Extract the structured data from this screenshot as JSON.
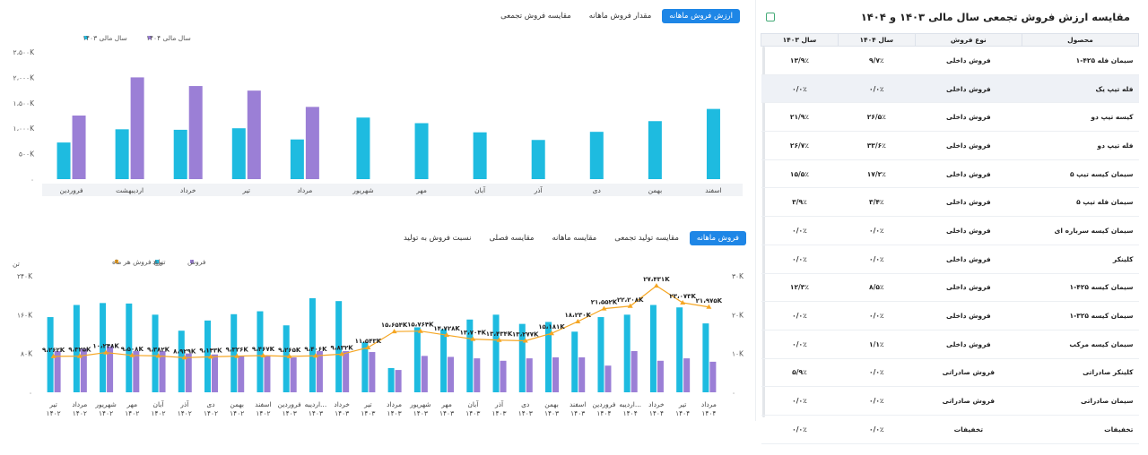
{
  "top_tabs": [
    {
      "label": "ارزش فروش ماهانه",
      "active": true
    },
    {
      "label": "مقدار فروش ماهانه",
      "active": false
    },
    {
      "label": "مقایسه فروش تجمعی",
      "active": false
    }
  ],
  "bottom_tabs": [
    {
      "label": "فروش ماهانه",
      "active": true
    },
    {
      "label": "مقایسه تولید تجمعی",
      "active": false
    },
    {
      "label": "مقایسه ماهانه",
      "active": false
    },
    {
      "label": "مقایسه فصلی",
      "active": false
    },
    {
      "label": "نسبت فروش به تولید",
      "active": false
    }
  ],
  "colors": {
    "cyan": "#1ebbe0",
    "purple": "#9b7fd6",
    "orange": "#f5a623",
    "axis": "#888888"
  },
  "chart_data": [
    {
      "type": "bar",
      "legend": [
        "سال مالی ۱۴۰۳",
        "سال مالی ۱۴۰۴"
      ],
      "legend_position": "top-left",
      "categories": [
        "فروردین",
        "اردیبهشت",
        "خرداد",
        "تیر",
        "مرداد",
        "شهریور",
        "مهر",
        "آبان",
        "آذر",
        "دی",
        "بهمن",
        "اسفند"
      ],
      "series": [
        {
          "name": "سال مالی ۱۴۰۳",
          "color": "#1ebbe0",
          "values": [
            720,
            980,
            970,
            1000,
            780,
            1210,
            1100,
            920,
            770,
            930,
            1140,
            1380
          ]
        },
        {
          "name": "سال مالی ۱۴۰۴",
          "color": "#9b7fd6",
          "values": [
            1250,
            2000,
            1830,
            1740,
            1420,
            null,
            null,
            null,
            null,
            null,
            null,
            null
          ]
        }
      ],
      "yticks": [
        "۰",
        "۵۰۰K",
        "۱،۰۰۰K",
        "۱،۵۰۰K",
        "۲،۰۰۰K",
        "۲،۵۰۰K"
      ],
      "ylim": [
        0,
        2500
      ]
    },
    {
      "type": "bar",
      "legend": [
        "فروش",
        "تولید",
        "نرخ فروش هر ماه"
      ],
      "legend_position": "top-left",
      "left_unit": "تن",
      "categories": [
        [
          "تیر",
          "۱۴۰۲"
        ],
        [
          "مرداد",
          "۱۴۰۲"
        ],
        [
          "شهریور",
          "۱۴۰۲"
        ],
        [
          "مهر",
          "۱۴۰۲"
        ],
        [
          "آبان",
          "۱۴۰۲"
        ],
        [
          "آذر",
          "۱۴۰۲"
        ],
        [
          "دی",
          "۱۴۰۲"
        ],
        [
          "بهمن",
          "۱۴۰۲"
        ],
        [
          "اسفند",
          "۱۴۰۲"
        ],
        [
          "فروردین",
          "۱۴۰۳"
        ],
        [
          "اردیبه...",
          "۱۴۰۳"
        ],
        [
          "خرداد",
          "۱۴۰۳"
        ],
        [
          "تیر",
          "۱۴۰۳"
        ],
        [
          "مرداد",
          "۱۴۰۳"
        ],
        [
          "شهریور",
          "۱۴۰۳"
        ],
        [
          "مهر",
          "۱۴۰۳"
        ],
        [
          "آبان",
          "۱۴۰۳"
        ],
        [
          "آذر",
          "۱۴۰۳"
        ],
        [
          "دی",
          "۱۴۰۳"
        ],
        [
          "بهمن",
          "۱۴۰۳"
        ],
        [
          "اسفند",
          "۱۴۰۳"
        ],
        [
          "فروردین",
          "۱۴۰۴"
        ],
        [
          "اردیبه...",
          "۱۴۰۴"
        ],
        [
          "خرداد",
          "۱۴۰۴"
        ],
        [
          "تیر",
          "۱۴۰۴"
        ],
        [
          "مرداد",
          "۱۴۰۴"
        ]
      ],
      "series": [
        {
          "name": "تولید",
          "color": "#1ebbe0",
          "axis": "left",
          "values": [
            155,
            180,
            184,
            183,
            160,
            127,
            148,
            161,
            167,
            138,
            194,
            188,
            103,
            50,
            134,
            130,
            150,
            160,
            141,
            145,
            125,
            155,
            160,
            180,
            175,
            142
          ]
        },
        {
          "name": "فروش",
          "color": "#9b7fd6",
          "axis": "left",
          "values": [
            85,
            90,
            95,
            85,
            85,
            80,
            78,
            75,
            75,
            72,
            85,
            85,
            83,
            46,
            75,
            73,
            70,
            65,
            70,
            72,
            72,
            55,
            85,
            65,
            70,
            63
          ]
        },
        {
          "name": "نرخ فروش هر ماه",
          "color": "#f5a623",
          "axis": "right",
          "type": "line",
          "values": [
            9.262,
            9.325,
            10.248,
            9.508,
            9.382,
            8.929,
            9.143,
            9.326,
            9.467,
            9.265,
            9.406,
            9.832,
            11.543,
            15.654,
            15.764,
            14.728,
            13.704,
            13.434,
            13.277,
            15.181,
            18.23,
            21.552,
            22.208,
            27.431,
            23.073,
            21.975
          ],
          "labels": [
            "۹،۲۶۲K",
            "۹،۳۲۵K",
            "۱۰،۲۴۸K",
            "۹،۵۰۸K",
            "۹،۳۸۲K",
            "۸،۹۲۹K",
            "۹،۱۴۳K",
            "۹،۳۲۶K",
            "۹،۴۶۷K",
            "۹،۲۶۵K",
            "۹،۴۰۶K",
            "۹،۸۳۲K",
            "۱۱،۵۴۳K",
            "۱۵،۶۵۴K",
            "۱۵،۷۶۴K",
            "۱۴،۷۲۸K",
            "۱۳،۷۰۴K",
            "۱۳،۴۳۴K",
            "۱۳،۲۷۷K",
            "۱۵،۱۸۱K",
            "۱۸،۲۳۰K",
            "۲۱،۵۵۲K",
            "۲۲،۲۰۸K",
            "۲۷،۴۳۱K",
            "۲۳،۰۷۳K",
            "۲۱،۹۷۵K"
          ]
        }
      ],
      "yticks_left": [
        "۰",
        "۸۰K",
        "۱۶۰K",
        "۲۴۰K"
      ],
      "ylim_left": [
        0,
        240
      ],
      "yticks_right": [
        "۰",
        "۱۰K",
        "۲۰K",
        "۳۰K"
      ],
      "ylim_right": [
        0,
        30
      ]
    }
  ],
  "table": {
    "title": "مقایسه ارزش فروش تجمعی سال مالی ۱۴۰۳ و ۱۴۰۴",
    "headers": [
      "محصول",
      "نوع فروش",
      "سال ۱۴۰۴",
      "سال ۱۴۰۳"
    ],
    "rows": [
      [
        "سیمان فله ۴۲۵-۱",
        "فروش داخلی",
        "۹/۷٪",
        "۱۳/۹٪"
      ],
      [
        "فله تیپ یک",
        "فروش داخلی",
        "۰/۰٪",
        "۰/۰٪"
      ],
      [
        "کیسه تیپ دو",
        "فروش داخلی",
        "۲۶/۵٪",
        "۲۱/۹٪"
      ],
      [
        "فله تیپ دو",
        "فروش داخلی",
        "۳۳/۶٪",
        "۲۶/۷٪"
      ],
      [
        "سیمان کیسه تیپ ۵",
        "فروش داخلی",
        "۱۷/۲٪",
        "۱۵/۵٪"
      ],
      [
        "سیمان فله تیپ ۵",
        "فروش داخلی",
        "۳/۴٪",
        "۳/۹٪"
      ],
      [
        "سیمان کیسه سرباره ای",
        "فروش داخلی",
        "۰/۰٪",
        "۰/۰٪"
      ],
      [
        "کلینکر",
        "فروش داخلی",
        "۰/۰٪",
        "۰/۰٪"
      ],
      [
        "سیمان کیسه ۴۲۵-۱",
        "فروش داخلی",
        "۸/۵٪",
        "۱۲/۳٪"
      ],
      [
        "سیمان کیسه ۳۲۵-۱",
        "فروش داخلی",
        "۰/۰٪",
        "۰/۰٪"
      ],
      [
        "سیمان کیسه مرکب",
        "فروش داخلی",
        "۱/۱٪",
        "۰/۰٪"
      ],
      [
        "کلینکر صادراتی",
        "فروش صادراتی",
        "۰/۰٪",
        "۵/۹٪"
      ],
      [
        "سیمان صادراتی",
        "فروش صادراتی",
        "۰/۰٪",
        "۰/۰٪"
      ],
      [
        "تخفیفات",
        "تخفیفات",
        "۰/۰٪",
        "۰/۰٪"
      ]
    ]
  }
}
